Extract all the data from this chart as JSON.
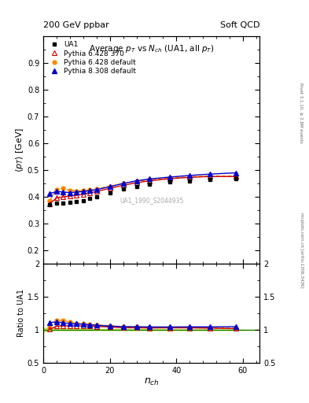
{
  "header_left": "200 GeV ppbar",
  "header_right": "Soft QCD",
  "title": "Average $p_T$ vs $N_{ch}$ (UA1, all $p_T$)",
  "ylabel_main": "$\\langle p_T \\rangle$ [GeV]",
  "ylabel_ratio": "Ratio to UA1",
  "xlabel": "$n_{ch}$",
  "watermark": "UA1_1990_S2044935",
  "right_label": "mcplots.cern.ch [arXiv:1306.3436]",
  "right_label2": "Rivet 3.1.10, ≥ 2.8M events",
  "ua1_x": [
    2,
    4,
    6,
    8,
    10,
    12,
    14,
    16,
    20,
    24,
    28,
    32,
    38,
    44,
    50,
    58
  ],
  "ua1_y": [
    0.372,
    0.376,
    0.378,
    0.381,
    0.384,
    0.387,
    0.393,
    0.4,
    0.415,
    0.43,
    0.44,
    0.448,
    0.455,
    0.46,
    0.465,
    0.468
  ],
  "py6370_x": [
    2,
    4,
    6,
    8,
    10,
    12,
    14,
    16,
    20,
    24,
    28,
    32,
    38,
    44,
    50,
    58
  ],
  "py6370_y": [
    0.375,
    0.396,
    0.4,
    0.403,
    0.406,
    0.41,
    0.415,
    0.42,
    0.432,
    0.443,
    0.453,
    0.46,
    0.468,
    0.473,
    0.476,
    0.476
  ],
  "py6def_x": [
    2,
    4,
    6,
    8,
    10,
    12,
    14,
    16,
    20,
    24,
    28,
    32,
    38,
    44,
    50,
    58
  ],
  "py6def_y": [
    0.387,
    0.428,
    0.432,
    0.425,
    0.422,
    0.423,
    0.426,
    0.43,
    0.44,
    0.45,
    0.458,
    0.464,
    0.47,
    0.475,
    0.478,
    0.478
  ],
  "py8def_x": [
    2,
    4,
    6,
    8,
    10,
    12,
    14,
    16,
    20,
    24,
    28,
    32,
    38,
    44,
    50,
    58
  ],
  "py8def_y": [
    0.413,
    0.42,
    0.418,
    0.416,
    0.418,
    0.42,
    0.423,
    0.427,
    0.438,
    0.45,
    0.46,
    0.467,
    0.474,
    0.48,
    0.485,
    0.49
  ],
  "ua1_color": "#000000",
  "py6370_color": "#cc0000",
  "py6def_color": "#ff8800",
  "py8def_color": "#0000cc",
  "ylim_main": [
    0.15,
    1.0
  ],
  "ylim_ratio": [
    0.5,
    2.0
  ],
  "xlim": [
    0,
    65
  ],
  "yticks_main": [
    0.2,
    0.3,
    0.4,
    0.5,
    0.6,
    0.7,
    0.8,
    0.9
  ],
  "yticks_ratio": [
    0.5,
    1.0,
    1.5,
    2.0
  ],
  "xticks": [
    0,
    20,
    40,
    60
  ]
}
